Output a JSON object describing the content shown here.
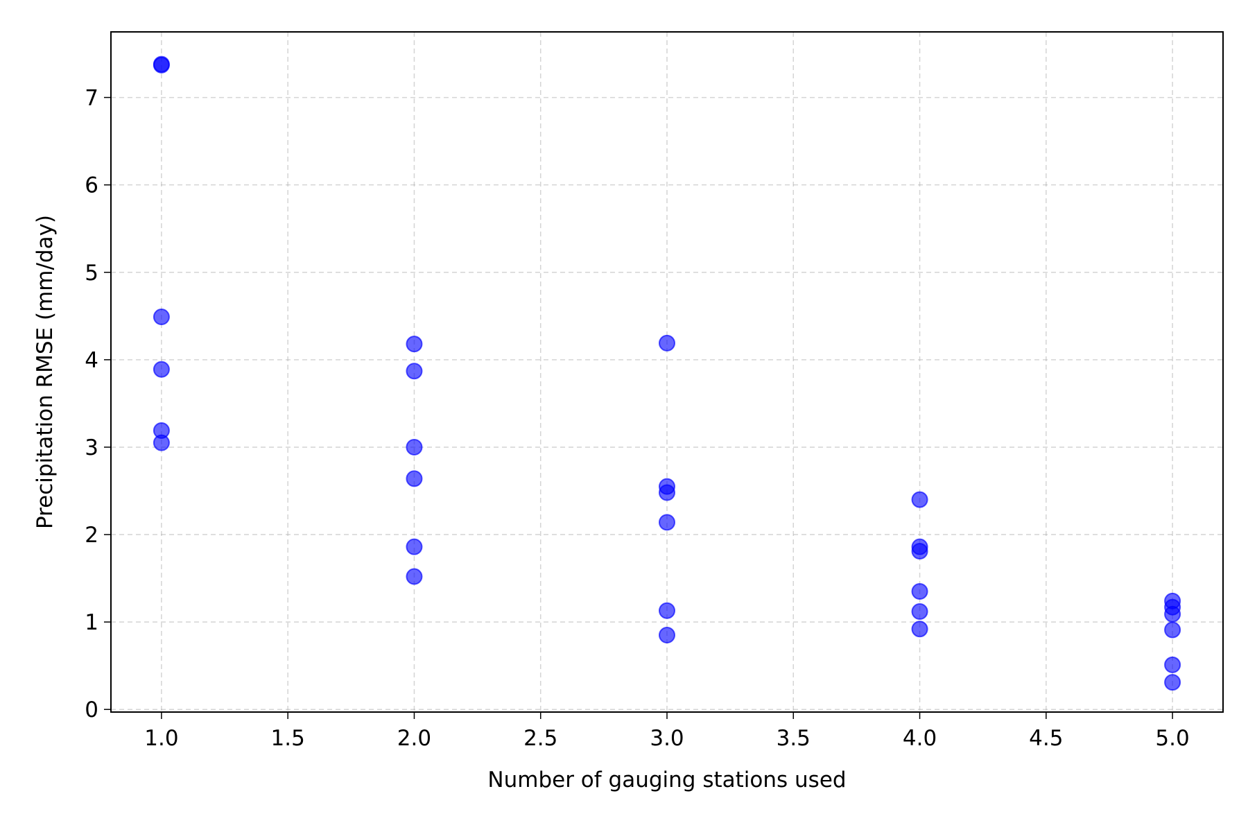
{
  "chart_data": {
    "type": "scatter",
    "title": "",
    "xlabel": "Number of gauging stations used",
    "ylabel": "Precipitation RMSE (mm/day)",
    "xlim": [
      0.8,
      5.2
    ],
    "ylim": [
      -0.03,
      7.75
    ],
    "xticks": [
      "1.0",
      "1.5",
      "2.0",
      "2.5",
      "3.0",
      "3.5",
      "4.0",
      "4.5",
      "5.0"
    ],
    "yticks": [
      "0",
      "1",
      "2",
      "3",
      "4",
      "5",
      "6",
      "7"
    ],
    "grid": true,
    "legend": false,
    "marker_color": "#0000ff",
    "marker_alpha": 0.6,
    "series": [
      {
        "points": [
          {
            "x": 1,
            "y": 7.38
          },
          {
            "x": 1,
            "y": 7.37
          },
          {
            "x": 1,
            "y": 4.49
          },
          {
            "x": 1,
            "y": 3.89
          },
          {
            "x": 1,
            "y": 3.19
          },
          {
            "x": 1,
            "y": 3.05
          },
          {
            "x": 2,
            "y": 4.18
          },
          {
            "x": 2,
            "y": 3.87
          },
          {
            "x": 2,
            "y": 3.0
          },
          {
            "x": 2,
            "y": 2.64
          },
          {
            "x": 2,
            "y": 1.86
          },
          {
            "x": 2,
            "y": 1.52
          },
          {
            "x": 3,
            "y": 4.19
          },
          {
            "x": 3,
            "y": 2.55
          },
          {
            "x": 3,
            "y": 2.48
          },
          {
            "x": 3,
            "y": 2.14
          },
          {
            "x": 3,
            "y": 1.13
          },
          {
            "x": 3,
            "y": 0.85
          },
          {
            "x": 4,
            "y": 2.4
          },
          {
            "x": 4,
            "y": 1.86
          },
          {
            "x": 4,
            "y": 1.81
          },
          {
            "x": 4,
            "y": 1.35
          },
          {
            "x": 4,
            "y": 1.12
          },
          {
            "x": 4,
            "y": 0.92
          },
          {
            "x": 5,
            "y": 1.24
          },
          {
            "x": 5,
            "y": 1.17
          },
          {
            "x": 5,
            "y": 1.09
          },
          {
            "x": 5,
            "y": 0.91
          },
          {
            "x": 5,
            "y": 0.51
          },
          {
            "x": 5,
            "y": 0.31
          }
        ]
      }
    ]
  }
}
